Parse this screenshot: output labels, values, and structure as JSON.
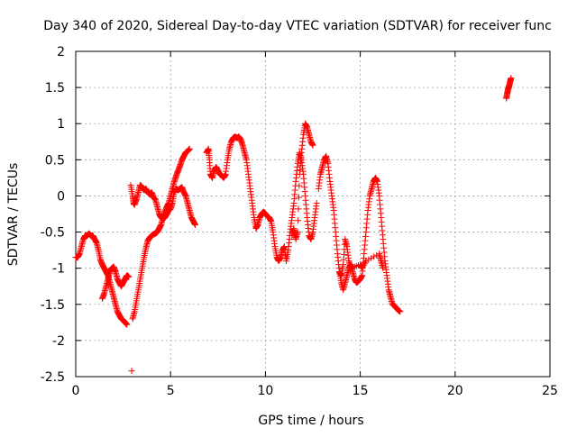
{
  "chart_data": {
    "type": "scatter",
    "title": "Day 340 of 2020, Sidereal Day-to-day VTEC variation (SDTVAR) for receiver func",
    "xlabel": "GPS time / hours",
    "ylabel": "SDTVAR / TECUs",
    "xlim": [
      0,
      25
    ],
    "ylim": [
      -2.5,
      2
    ],
    "xticks": [
      0,
      5,
      10,
      15,
      20,
      25
    ],
    "yticks": [
      -2.5,
      -2,
      -1.5,
      -1,
      -0.5,
      0,
      0.5,
      1,
      1.5,
      2
    ],
    "xtick_labels": [
      "0",
      "5",
      "10",
      "15",
      "20",
      "25"
    ],
    "ytick_labels": [
      "-2.5",
      "-2",
      "-1.5",
      "-1",
      "-0.5",
      "0",
      "0.5",
      "1",
      "1.5",
      "2"
    ],
    "grid": true,
    "marker": "+",
    "series": [
      {
        "name": "SDTVAR",
        "color": "#ff0000",
        "segments": [
          [
            [
              0.0,
              -0.85
            ],
            [
              0.1,
              -0.85
            ],
            [
              0.2,
              -0.8
            ],
            [
              0.3,
              -0.7
            ],
            [
              0.4,
              -0.6
            ],
            [
              0.5,
              -0.55
            ],
            [
              0.6,
              -0.55
            ],
            [
              0.7,
              -0.52
            ],
            [
              0.8,
              -0.55
            ],
            [
              0.9,
              -0.55
            ],
            [
              1.0,
              -0.6
            ],
            [
              1.1,
              -0.65
            ],
            [
              1.2,
              -0.75
            ],
            [
              1.3,
              -0.88
            ],
            [
              1.4,
              -0.95
            ],
            [
              1.5,
              -1.0
            ],
            [
              1.6,
              -1.05
            ],
            [
              1.7,
              -1.1
            ],
            [
              1.8,
              -1.2
            ],
            [
              1.9,
              -1.3
            ],
            [
              2.0,
              -1.4
            ],
            [
              2.1,
              -1.5
            ],
            [
              2.2,
              -1.6
            ],
            [
              2.3,
              -1.65
            ],
            [
              2.4,
              -1.7
            ],
            [
              2.5,
              -1.72
            ],
            [
              2.6,
              -1.75
            ],
            [
              2.7,
              -1.78
            ]
          ],
          [
            [
              1.4,
              -1.42
            ],
            [
              1.5,
              -1.35
            ],
            [
              1.6,
              -1.25
            ],
            [
              1.7,
              -1.15
            ],
            [
              1.8,
              -1.05
            ],
            [
              1.9,
              -1.0
            ],
            [
              2.0,
              -0.98
            ],
            [
              2.1,
              -1.05
            ],
            [
              2.2,
              -1.15
            ],
            [
              2.3,
              -1.2
            ],
            [
              2.4,
              -1.25
            ],
            [
              2.5,
              -1.2
            ],
            [
              2.6,
              -1.15
            ],
            [
              2.7,
              -1.1
            ],
            [
              2.8,
              -1.12
            ]
          ],
          [
            [
              2.9,
              0.15
            ],
            [
              3.0,
              0.0
            ],
            [
              3.05,
              -0.1
            ],
            [
              3.1,
              -0.12
            ],
            [
              3.2,
              -0.05
            ],
            [
              3.3,
              0.05
            ],
            [
              3.4,
              0.15
            ],
            [
              3.5,
              0.12
            ],
            [
              3.6,
              0.08
            ],
            [
              3.7,
              0.1
            ],
            [
              3.8,
              0.05
            ],
            [
              3.9,
              0.02
            ],
            [
              4.0,
              0.05
            ],
            [
              4.1,
              -0.02
            ],
            [
              4.2,
              -0.05
            ],
            [
              4.3,
              -0.15
            ],
            [
              4.4,
              -0.25
            ],
            [
              4.5,
              -0.3
            ],
            [
              4.6,
              -0.32
            ],
            [
              4.7,
              -0.3
            ],
            [
              4.8,
              -0.25
            ],
            [
              4.9,
              -0.2
            ],
            [
              5.0,
              -0.18
            ],
            [
              5.1,
              -0.1
            ],
            [
              5.2,
              0.05
            ],
            [
              5.3,
              0.1
            ],
            [
              5.4,
              0.08
            ],
            [
              5.5,
              0.1
            ],
            [
              5.6,
              0.12
            ],
            [
              5.7,
              0.05
            ],
            [
              5.8,
              0.0
            ],
            [
              5.9,
              -0.1
            ],
            [
              6.0,
              -0.2
            ],
            [
              6.1,
              -0.3
            ],
            [
              6.2,
              -0.35
            ],
            [
              6.3,
              -0.4
            ]
          ],
          [
            [
              3.0,
              -1.7
            ],
            [
              3.1,
              -1.6
            ],
            [
              3.2,
              -1.45
            ],
            [
              3.3,
              -1.3
            ],
            [
              3.4,
              -1.15
            ],
            [
              3.5,
              -1.0
            ],
            [
              3.6,
              -0.85
            ],
            [
              3.7,
              -0.72
            ],
            [
              3.8,
              -0.62
            ],
            [
              3.9,
              -0.58
            ],
            [
              4.0,
              -0.55
            ],
            [
              4.1,
              -0.53
            ],
            [
              4.2,
              -0.52
            ],
            [
              4.3,
              -0.5
            ],
            [
              4.4,
              -0.45
            ],
            [
              4.5,
              -0.4
            ],
            [
              4.6,
              -0.3
            ],
            [
              4.7,
              -0.22
            ],
            [
              4.8,
              -0.15
            ],
            [
              4.9,
              -0.1
            ],
            [
              5.0,
              0.0
            ],
            [
              5.1,
              0.1
            ],
            [
              5.2,
              0.2
            ],
            [
              5.3,
              0.28
            ],
            [
              5.4,
              0.35
            ],
            [
              5.5,
              0.42
            ],
            [
              5.6,
              0.5
            ],
            [
              5.7,
              0.55
            ],
            [
              5.8,
              0.6
            ],
            [
              5.9,
              0.62
            ],
            [
              6.0,
              0.65
            ]
          ],
          [
            [
              6.9,
              0.6
            ],
            [
              7.0,
              0.65
            ],
            [
              7.05,
              0.5
            ],
            [
              7.1,
              0.3
            ],
            [
              7.2,
              0.25
            ],
            [
              7.3,
              0.35
            ],
            [
              7.4,
              0.4
            ],
            [
              7.5,
              0.35
            ],
            [
              7.6,
              0.3
            ],
            [
              7.7,
              0.28
            ],
            [
              7.8,
              0.25
            ],
            [
              7.9,
              0.3
            ],
            [
              8.0,
              0.5
            ],
            [
              8.1,
              0.65
            ],
            [
              8.2,
              0.75
            ],
            [
              8.3,
              0.8
            ],
            [
              8.4,
              0.82
            ],
            [
              8.5,
              0.8
            ],
            [
              8.6,
              0.82
            ],
            [
              8.7,
              0.78
            ],
            [
              8.8,
              0.7
            ],
            [
              8.9,
              0.6
            ],
            [
              9.0,
              0.5
            ],
            [
              9.1,
              0.3
            ],
            [
              9.2,
              0.1
            ],
            [
              9.3,
              -0.1
            ],
            [
              9.4,
              -0.3
            ],
            [
              9.5,
              -0.45
            ],
            [
              9.6,
              -0.4
            ],
            [
              9.7,
              -0.3
            ],
            [
              9.8,
              -0.25
            ],
            [
              9.9,
              -0.22
            ],
            [
              10.0,
              -0.25
            ],
            [
              10.1,
              -0.28
            ],
            [
              10.2,
              -0.3
            ],
            [
              10.3,
              -0.35
            ],
            [
              10.4,
              -0.5
            ],
            [
              10.5,
              -0.7
            ],
            [
              10.6,
              -0.85
            ],
            [
              10.7,
              -0.9
            ],
            [
              10.8,
              -0.85
            ],
            [
              10.9,
              -0.75
            ],
            [
              11.0,
              -0.7
            ],
            [
              11.1,
              -0.9
            ],
            [
              11.2,
              -0.75
            ],
            [
              11.3,
              -0.5
            ],
            [
              11.4,
              -0.3
            ],
            [
              11.5,
              -0.1
            ],
            [
              11.6,
              0.2
            ],
            [
              11.7,
              0.45
            ],
            [
              11.8,
              0.6
            ],
            [
              11.9,
              0.5
            ],
            [
              12.0,
              0.3
            ],
            [
              12.1,
              0.0
            ],
            [
              12.2,
              -0.3
            ],
            [
              12.3,
              -0.55
            ],
            [
              12.4,
              -0.6
            ],
            [
              12.5,
              -0.5
            ],
            [
              12.6,
              -0.3
            ],
            [
              12.7,
              -0.1
            ]
          ],
          [
            [
              11.4,
              -0.55
            ],
            [
              11.5,
              -0.45
            ],
            [
              11.6,
              -0.6
            ],
            [
              11.7,
              -0.5
            ],
            [
              11.8,
              0.3
            ],
            [
              11.9,
              0.6
            ],
            [
              12.0,
              0.85
            ],
            [
              12.1,
              1.0
            ],
            [
              12.2,
              0.95
            ],
            [
              12.3,
              0.85
            ],
            [
              12.4,
              0.75
            ],
            [
              12.5,
              0.7
            ]
          ],
          [
            [
              12.8,
              0.1
            ],
            [
              12.9,
              0.3
            ],
            [
              13.0,
              0.4
            ],
            [
              13.1,
              0.5
            ],
            [
              13.2,
              0.55
            ],
            [
              13.3,
              0.45
            ],
            [
              13.4,
              0.2
            ],
            [
              13.5,
              0.0
            ],
            [
              13.6,
              -0.2
            ],
            [
              13.7,
              -0.5
            ],
            [
              13.8,
              -0.8
            ],
            [
              13.9,
              -1.05
            ],
            [
              14.0,
              -1.2
            ],
            [
              14.1,
              -1.3
            ],
            [
              14.2,
              -1.2
            ],
            [
              14.3,
              -1.1
            ],
            [
              14.4,
              -1.0
            ],
            [
              14.5,
              -0.95
            ],
            [
              14.6,
              -1.05
            ],
            [
              14.7,
              -1.15
            ],
            [
              14.8,
              -1.2
            ],
            [
              14.9,
              -1.18
            ],
            [
              15.0,
              -1.15
            ],
            [
              15.1,
              -1.1
            ],
            [
              15.2,
              -0.8
            ],
            [
              15.3,
              -0.5
            ],
            [
              15.4,
              -0.2
            ],
            [
              15.5,
              0.0
            ],
            [
              15.6,
              0.1
            ],
            [
              15.7,
              0.2
            ],
            [
              15.8,
              0.25
            ],
            [
              15.9,
              0.2
            ],
            [
              16.0,
              0.0
            ],
            [
              16.1,
              -0.3
            ],
            [
              16.2,
              -0.6
            ],
            [
              16.3,
              -0.9
            ],
            [
              16.4,
              -1.1
            ],
            [
              16.5,
              -1.3
            ],
            [
              16.6,
              -1.4
            ],
            [
              16.7,
              -1.5
            ],
            [
              16.8,
              -1.52
            ],
            [
              16.9,
              -1.55
            ],
            [
              17.0,
              -1.58
            ],
            [
              17.1,
              -1.6
            ]
          ],
          [
            [
              13.9,
              -1.05
            ],
            [
              14.0,
              -1.1
            ],
            [
              14.1,
              -0.95
            ],
            [
              14.2,
              -0.6
            ],
            [
              14.3,
              -0.7
            ],
            [
              14.4,
              -0.9
            ],
            [
              14.5,
              -1.0
            ],
            [
              15.0,
              -0.95
            ],
            [
              15.1,
              -1.0
            ],
            [
              15.3,
              -0.9
            ],
            [
              16.0,
              -0.8
            ],
            [
              16.1,
              -0.9
            ],
            [
              16.2,
              -1.0
            ]
          ],
          [
            [
              22.7,
              1.35
            ],
            [
              22.75,
              1.42
            ],
            [
              22.8,
              1.48
            ],
            [
              22.85,
              1.52
            ],
            [
              22.9,
              1.58
            ],
            [
              22.95,
              1.63
            ]
          ],
          [
            [
              2.95,
              -2.42
            ]
          ]
        ]
      }
    ]
  }
}
